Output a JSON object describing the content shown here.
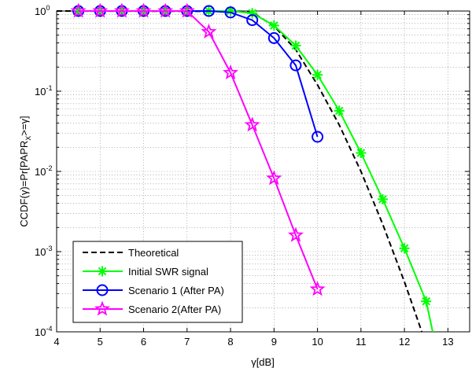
{
  "chart_data": {
    "type": "line",
    "title": "",
    "xlabel": "γ[dB]",
    "ylabel": "CCDF(γ)=Pr[PAPR_X>=γ]",
    "xlim": [
      4,
      13.5
    ],
    "ylim": [
      0.0001,
      1
    ],
    "yscale": "log",
    "grid": true,
    "legend_position": "bottom-left",
    "xticks": [
      4,
      5,
      6,
      7,
      8,
      9,
      10,
      11,
      12,
      13
    ],
    "yticks": [
      {
        "value": 1,
        "base": "10",
        "exp": "0"
      },
      {
        "value": 0.1,
        "base": "10",
        "exp": "-1"
      },
      {
        "value": 0.01,
        "base": "10",
        "exp": "-2"
      },
      {
        "value": 0.001,
        "base": "10",
        "exp": "-3"
      },
      {
        "value": 0.0001,
        "base": "10",
        "exp": "-4"
      }
    ],
    "series": [
      {
        "name": "Theoretical",
        "color": "#000000",
        "style": "dashed",
        "marker": "none",
        "x": [
          4,
          8.3,
          8.5,
          9.0,
          9.5,
          10.0,
          10.5,
          11.0,
          11.5,
          12.0,
          12.4
        ],
        "y": [
          1,
          0.99,
          0.96,
          0.65,
          0.33,
          0.12,
          0.038,
          0.01,
          0.0022,
          0.00042,
          0.0001
        ]
      },
      {
        "name": "Initial SWR signal",
        "color": "#00ff00",
        "style": "solid",
        "marker": "asterisk",
        "x": [
          4.5,
          5.0,
          5.5,
          6.0,
          6.5,
          7.0,
          7.5,
          8.0,
          8.5,
          9.0,
          9.5,
          10.0,
          10.5,
          11.0,
          11.5,
          12.0,
          12.5,
          12.65
        ],
        "y": [
          1,
          1,
          1,
          1,
          1,
          1,
          1,
          1,
          0.94,
          0.66,
          0.37,
          0.16,
          0.057,
          0.017,
          0.0045,
          0.0011,
          0.00024,
          0.0001
        ]
      },
      {
        "name": "Scenario 1 (After PA)",
        "color": "#0000ff",
        "style": "solid",
        "marker": "circle",
        "x": [
          4.5,
          5.0,
          5.5,
          6.0,
          6.5,
          7.0,
          7.5,
          8.0,
          8.5,
          9.0,
          9.5,
          10.0
        ],
        "y": [
          1,
          1,
          1,
          1,
          1,
          1,
          1,
          0.96,
          0.77,
          0.46,
          0.21,
          0.027
        ]
      },
      {
        "name": "Scenario 2(After PA)",
        "color": "#ff00ff",
        "style": "solid",
        "marker": "star",
        "x": [
          4.5,
          5.0,
          5.5,
          6.0,
          6.5,
          7.0,
          7.5,
          8.0,
          8.5,
          9.0,
          9.5,
          10.0
        ],
        "y": [
          1,
          1,
          1,
          1,
          1,
          1,
          0.55,
          0.17,
          0.038,
          0.0082,
          0.0016,
          0.00034
        ]
      }
    ]
  }
}
